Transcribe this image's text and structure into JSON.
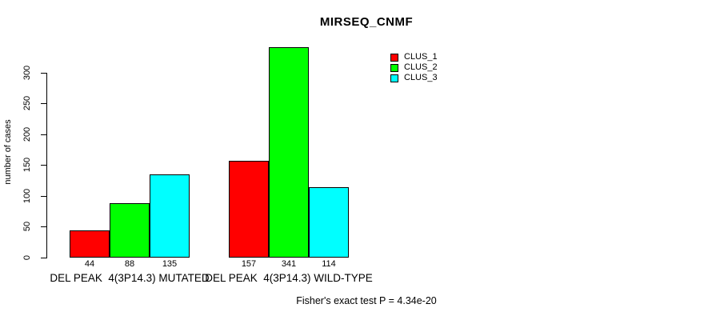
{
  "chart_data": {
    "type": "bar",
    "title": "MIRSEQ_CNMF",
    "xlabel": "",
    "ylabel": "number of cases",
    "ylim": [
      0,
      341
    ],
    "yticks": [
      0,
      50,
      100,
      150,
      200,
      250,
      300
    ],
    "grid": false,
    "legend_position": "top-right",
    "categories": [
      "DEL PEAK  4(3P14.3) MUTATED",
      "DEL PEAK  4(3P14.3) WILD-TYPE"
    ],
    "series": [
      {
        "name": "CLUS_1",
        "color": "#ff0000",
        "values": [
          44,
          157
        ]
      },
      {
        "name": "CLUS_2",
        "color": "#00ff00",
        "values": [
          88,
          341
        ]
      },
      {
        "name": "CLUS_3",
        "color": "#00ffff",
        "values": [
          135,
          114
        ]
      }
    ],
    "bar_value_labels": [
      [
        "44",
        "88",
        "135"
      ],
      [
        "157",
        "341",
        "114"
      ]
    ],
    "annotation": "Fisher's exact test P = 4.34e-20"
  }
}
